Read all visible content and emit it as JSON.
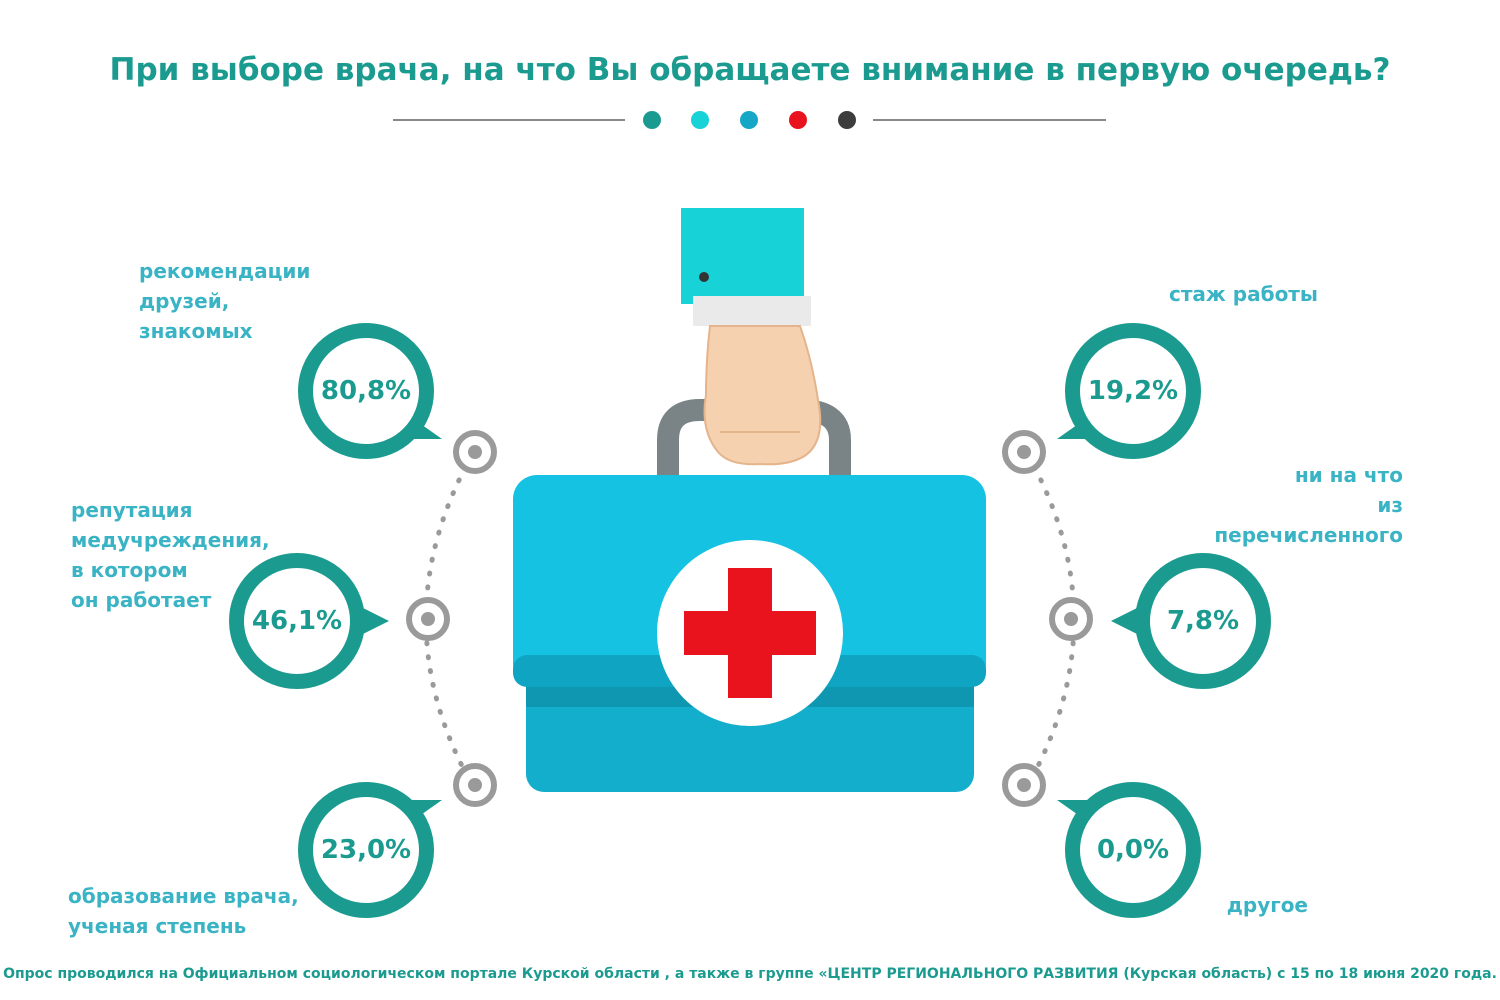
{
  "title": "При выборе врача, на что Вы обращаете внимание в первую очередь?",
  "colors": {
    "teal": "#1b9b8f",
    "aqua": "#17d2d6",
    "blue": "#17a7c6",
    "red": "#e8131c",
    "dark": "#3d3d3d",
    "label": "#3ab4c4"
  },
  "items": [
    {
      "label": "рекомендации\nдрузей,\nзнакомых",
      "value": "80,8%"
    },
    {
      "label": "репутация\nмедучреждения,\nв котором\nон работает",
      "value": "46,1%"
    },
    {
      "label": "образование врача,\nученая степень",
      "value": "23,0%"
    },
    {
      "label": "стаж работы",
      "value": "19,2%"
    },
    {
      "label": "ни на что\nиз\nперечисленного",
      "value": "7,8%"
    },
    {
      "label": "другое",
      "value": "0,0%"
    }
  ],
  "footer": "Опрос проводился на Официальном социологическом портале Курской области , а также в группе «ЦЕНТР РЕГИОНАЛЬНОГО РАЗВИТИЯ (Курская область) с 15 по 18 июня 2020 года."
}
